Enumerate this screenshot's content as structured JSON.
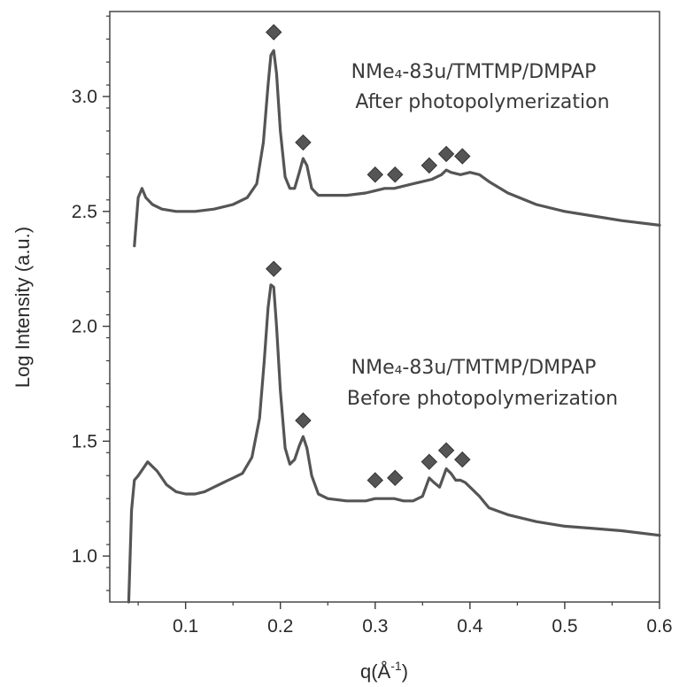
{
  "chart_data": {
    "type": "line",
    "xlabel": "q(Å",
    "xlabel_sup": "-1",
    "xlabel_close": ")",
    "ylabel": "Log Intensity (a.u.)",
    "xlim": [
      0.02,
      0.6
    ],
    "ylim": [
      0.8,
      3.37
    ],
    "xticks": [
      0.1,
      0.2,
      0.3,
      0.4,
      0.5,
      0.6
    ],
    "xtick_labels": [
      "0.1",
      "0.2",
      "0.3",
      "0.4",
      "0.5",
      "0.6"
    ],
    "yticks": [
      1.0,
      1.5,
      2.0,
      2.5,
      3.0
    ],
    "ytick_labels": [
      "1.0",
      "1.5",
      "2.0",
      "2.5",
      "3.0"
    ],
    "grid": false,
    "line_color": "#555555",
    "marker_color": "#555555",
    "series": [
      {
        "annotation_line1": "NMe₄-83u/TMTMP/DMPAP",
        "annotation_line2": "After photopolymerization",
        "x": [
          0.046,
          0.05,
          0.054,
          0.058,
          0.065,
          0.075,
          0.09,
          0.11,
          0.13,
          0.15,
          0.165,
          0.175,
          0.182,
          0.187,
          0.19,
          0.193,
          0.196,
          0.2,
          0.205,
          0.21,
          0.215,
          0.22,
          0.224,
          0.228,
          0.233,
          0.24,
          0.25,
          0.27,
          0.29,
          0.3,
          0.31,
          0.32,
          0.33,
          0.34,
          0.35,
          0.36,
          0.37,
          0.375,
          0.38,
          0.39,
          0.4,
          0.41,
          0.42,
          0.44,
          0.47,
          0.5,
          0.53,
          0.56,
          0.6
        ],
        "y": [
          2.35,
          2.56,
          2.6,
          2.56,
          2.53,
          2.51,
          2.5,
          2.5,
          2.51,
          2.53,
          2.56,
          2.62,
          2.8,
          3.05,
          3.18,
          3.2,
          3.1,
          2.85,
          2.65,
          2.6,
          2.6,
          2.67,
          2.73,
          2.7,
          2.6,
          2.57,
          2.57,
          2.57,
          2.58,
          2.59,
          2.6,
          2.6,
          2.61,
          2.62,
          2.63,
          2.64,
          2.66,
          2.68,
          2.67,
          2.66,
          2.67,
          2.66,
          2.63,
          2.58,
          2.53,
          2.5,
          2.48,
          2.46,
          2.44
        ],
        "peak_markers": [
          {
            "x": 0.193,
            "y": 3.28
          },
          {
            "x": 0.224,
            "y": 2.8
          },
          {
            "x": 0.3,
            "y": 2.66
          },
          {
            "x": 0.321,
            "y": 2.66
          },
          {
            "x": 0.357,
            "y": 2.7
          },
          {
            "x": 0.375,
            "y": 2.75
          },
          {
            "x": 0.392,
            "y": 2.74
          }
        ]
      },
      {
        "annotation_line1": "NMe₄-83u/TMTMP/DMPAP",
        "annotation_line2": "Before photopolymerization",
        "x": [
          0.04,
          0.043,
          0.046,
          0.05,
          0.055,
          0.06,
          0.07,
          0.08,
          0.09,
          0.1,
          0.11,
          0.12,
          0.13,
          0.14,
          0.15,
          0.16,
          0.17,
          0.178,
          0.183,
          0.187,
          0.19,
          0.193,
          0.196,
          0.2,
          0.205,
          0.21,
          0.215,
          0.22,
          0.224,
          0.228,
          0.233,
          0.24,
          0.25,
          0.27,
          0.29,
          0.3,
          0.31,
          0.32,
          0.33,
          0.34,
          0.35,
          0.357,
          0.362,
          0.368,
          0.375,
          0.38,
          0.385,
          0.39,
          0.395,
          0.4,
          0.41,
          0.42,
          0.44,
          0.47,
          0.5,
          0.53,
          0.56,
          0.6
        ],
        "y": [
          0.8,
          1.2,
          1.33,
          1.35,
          1.38,
          1.41,
          1.37,
          1.31,
          1.28,
          1.27,
          1.27,
          1.28,
          1.3,
          1.32,
          1.34,
          1.36,
          1.43,
          1.6,
          1.85,
          2.08,
          2.18,
          2.17,
          2.0,
          1.72,
          1.47,
          1.4,
          1.42,
          1.48,
          1.52,
          1.47,
          1.35,
          1.27,
          1.25,
          1.24,
          1.24,
          1.25,
          1.25,
          1.25,
          1.24,
          1.24,
          1.26,
          1.34,
          1.32,
          1.3,
          1.38,
          1.36,
          1.33,
          1.33,
          1.32,
          1.3,
          1.26,
          1.21,
          1.18,
          1.15,
          1.13,
          1.12,
          1.11,
          1.09
        ],
        "peak_markers": [
          {
            "x": 0.193,
            "y": 2.25
          },
          {
            "x": 0.224,
            "y": 1.59
          },
          {
            "x": 0.3,
            "y": 1.33
          },
          {
            "x": 0.321,
            "y": 1.34
          },
          {
            "x": 0.357,
            "y": 1.41
          },
          {
            "x": 0.375,
            "y": 1.46
          },
          {
            "x": 0.392,
            "y": 1.42
          }
        ]
      }
    ]
  }
}
